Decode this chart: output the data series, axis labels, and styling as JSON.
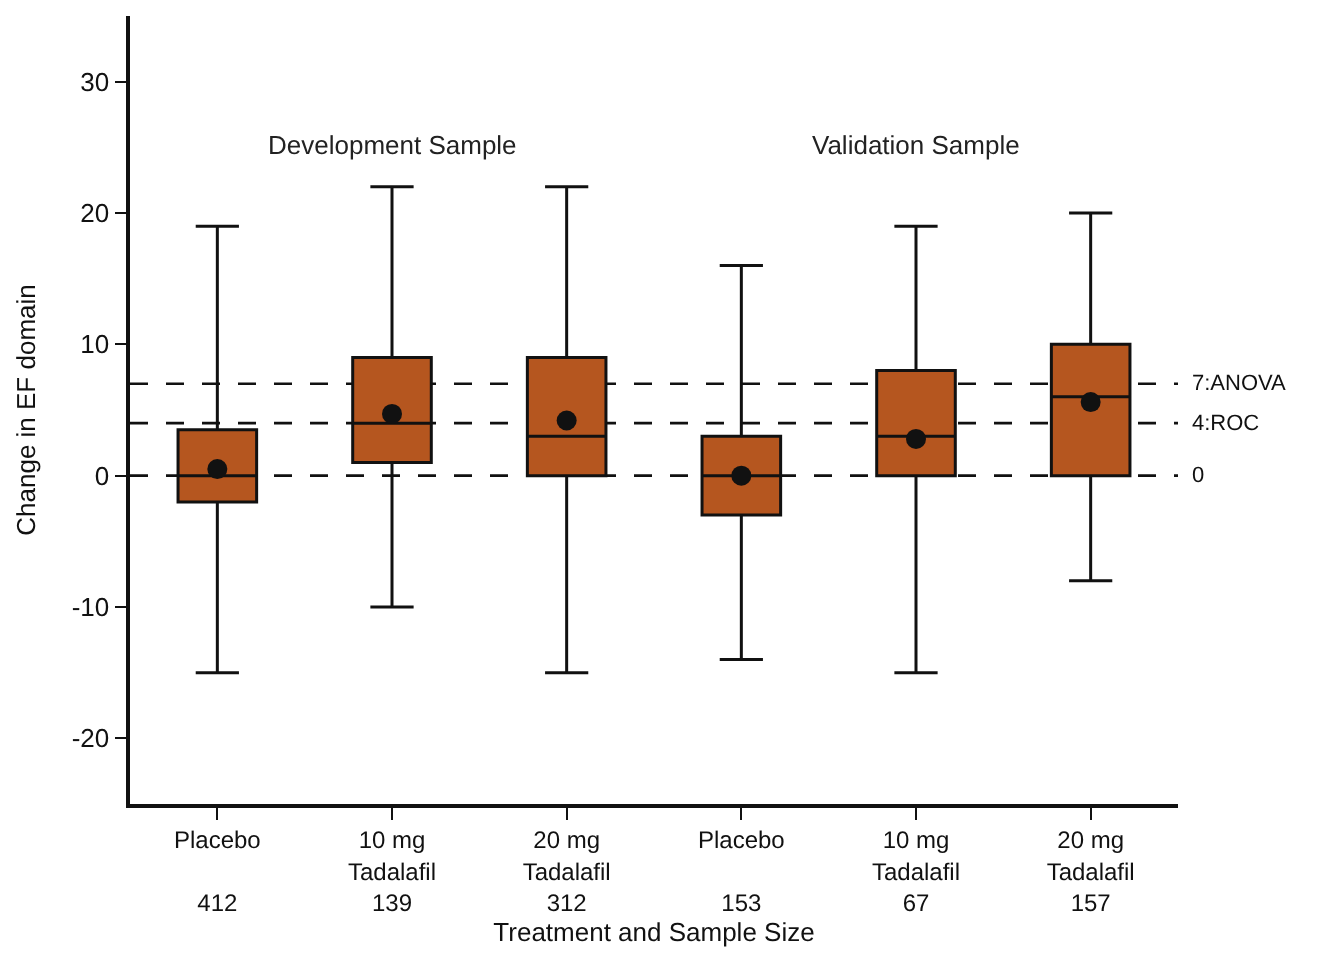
{
  "chart_data": {
    "type": "box",
    "ylabel": "Change in EF domain",
    "xlabel": "Treatment and Sample Size",
    "categories": [
      "Placebo\n\n412",
      "10 mg\nTadalafil\n139",
      "20 mg\nTadalafil\n312",
      "Placebo\n\n153",
      "10 mg\nTadalafil\n67",
      "20 mg\nTadalafil\n157"
    ],
    "boxes": [
      {
        "low": -15,
        "q1": -2,
        "median": 0,
        "q3": 3.5,
        "high": 19,
        "mean": 0.5
      },
      {
        "low": -10,
        "q1": 1,
        "median": 4,
        "q3": 9,
        "high": 22,
        "mean": 4.7
      },
      {
        "low": -15,
        "q1": 0,
        "median": 3,
        "q3": 9,
        "high": 22,
        "mean": 4.2
      },
      {
        "low": -14,
        "q1": -3,
        "median": 0,
        "q3": 3,
        "high": 16,
        "mean": 0
      },
      {
        "low": -15,
        "q1": 0,
        "median": 3,
        "q3": 8,
        "high": 19,
        "mean": 2.8
      },
      {
        "low": -8,
        "q1": 0,
        "median": 6,
        "q3": 10,
        "high": 20,
        "mean": 5.6
      }
    ],
    "color": "#b5561f",
    "ylim": [
      -25,
      35
    ],
    "yticks": [
      -20,
      -10,
      0,
      10,
      20,
      30
    ],
    "grid": false,
    "ref_lines": [
      {
        "axis": "y",
        "value": 7,
        "label": "7:ANOVA",
        "line_style": "dashed"
      },
      {
        "axis": "y",
        "value": 4,
        "label": "4:ROC",
        "line_style": "dashed"
      },
      {
        "axis": "y",
        "value": 0,
        "label": "0",
        "line_style": "dashed"
      }
    ],
    "annotations": [
      "Development Sample",
      "Validation Sample"
    ]
  }
}
